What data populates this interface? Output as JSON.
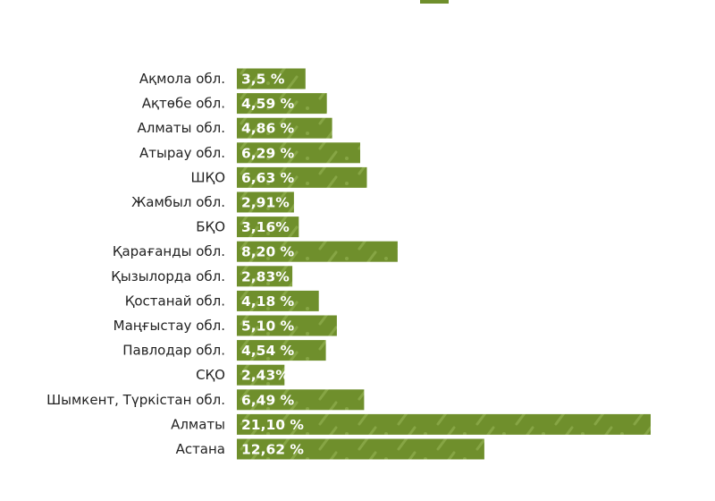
{
  "colors": {
    "bar": "#6f8f2c",
    "stripe": "#86a544",
    "text": "#222222",
    "value_text": "#ffffff"
  },
  "chart_data": {
    "type": "bar",
    "orientation": "horizontal",
    "categories": [
      "Ақмола обл.",
      "Ақтөбе обл.",
      "Алматы обл.",
      "Атырау обл.",
      "ШҚО",
      "Жамбыл обл.",
      "БҚО",
      "Қарағанды обл.",
      "Қызылорда обл.",
      "Қостанай обл.",
      "Маңғыстау обл.",
      "Павлодар обл.",
      "СҚО",
      "Шымкент, Түркістан обл.",
      "Алматы",
      "Астана"
    ],
    "values": [
      3.5,
      4.59,
      4.86,
      6.29,
      6.63,
      2.91,
      3.16,
      8.2,
      2.83,
      4.18,
      5.1,
      4.54,
      2.43,
      6.49,
      21.1,
      12.62
    ],
    "value_labels": [
      "3,5 %",
      "4,59 %",
      "4,86 %",
      "6,29 %",
      "6,63 %",
      "2,91%",
      "3,16%",
      "8,20 %",
      "2,83%",
      "4,18 %",
      "5,10 %",
      "4,54 %",
      "2,43%",
      "6,49 %",
      "21,10 %",
      "12,62 %"
    ],
    "unit": "%",
    "grid": false,
    "legend": "none"
  }
}
